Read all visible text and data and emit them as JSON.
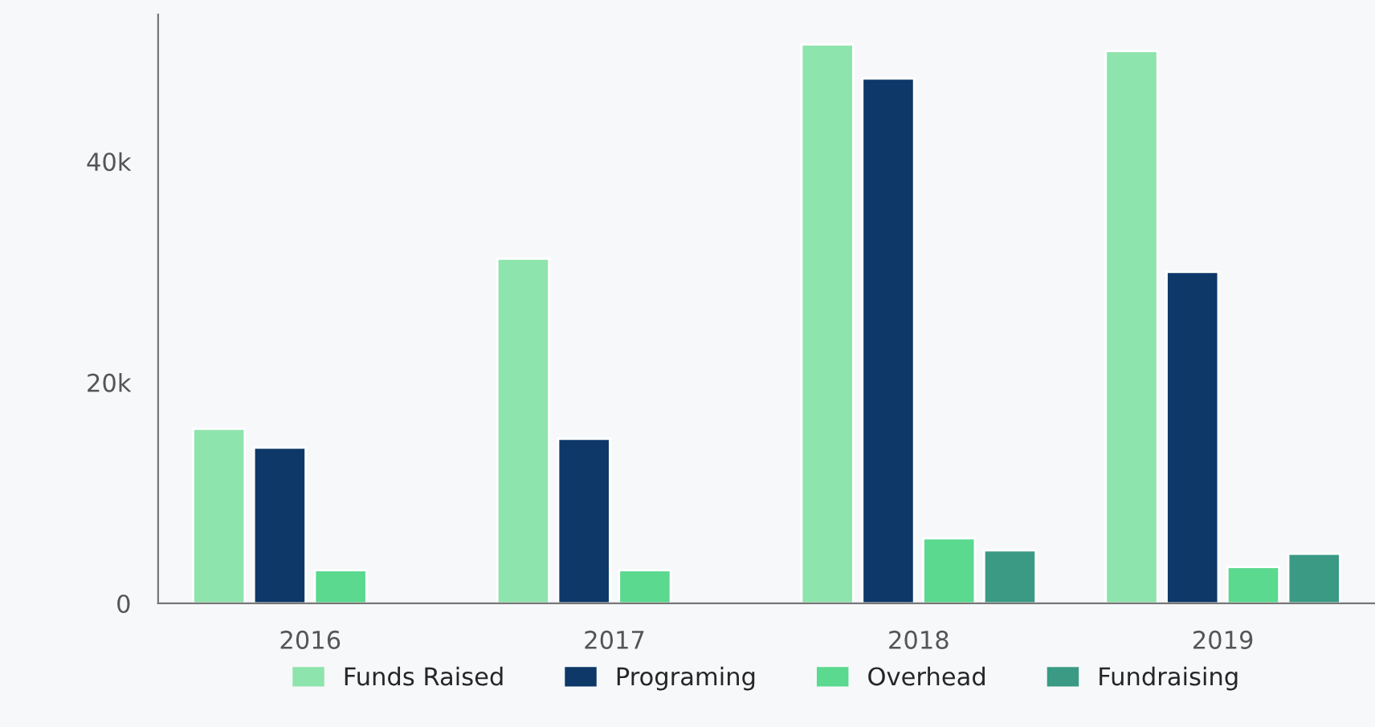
{
  "chart_data": {
    "type": "bar",
    "categories": [
      "2016",
      "2017",
      "2018",
      "2019"
    ],
    "series": [
      {
        "name": "Funds Raised",
        "color": "#8ee4ad",
        "values": [
          15800,
          31200,
          50600,
          50000
        ]
      },
      {
        "name": "Programing",
        "color": "#0d3868",
        "values": [
          14100,
          14900,
          47500,
          30000
        ]
      },
      {
        "name": "Overhead",
        "color": "#5ad98f",
        "values": [
          3000,
          3000,
          5900,
          3300
        ]
      },
      {
        "name": "Fundraising",
        "color": "#3a9a84",
        "values": [
          null,
          null,
          4800,
          4500
        ]
      }
    ],
    "ylim": [
      0,
      53300
    ],
    "yticks": [
      {
        "value": 0,
        "label": "0"
      },
      {
        "value": 20000,
        "label": "20k"
      },
      {
        "value": 40000,
        "label": "40k"
      }
    ],
    "grid": false,
    "legend": "bottom"
  }
}
